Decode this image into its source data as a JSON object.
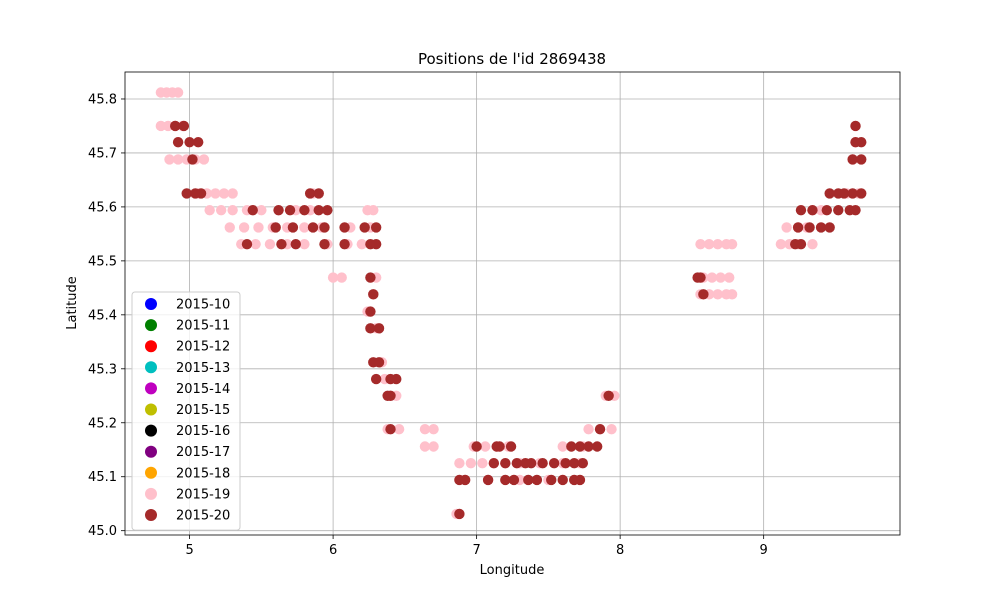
{
  "chart_data": {
    "type": "scatter",
    "title": "Positions de l'id 2869438",
    "xlabel": "Longitude",
    "ylabel": "Latitude",
    "xlim": [
      4.55,
      9.95
    ],
    "ylim": [
      44.992,
      45.85
    ],
    "xticks": [
      5,
      6,
      7,
      8,
      9
    ],
    "yticks": [
      45.0,
      45.1,
      45.2,
      45.3,
      45.4,
      45.5,
      45.6,
      45.7,
      45.8
    ],
    "ytick_labels": [
      "45.0",
      "45.1",
      "45.2",
      "45.3",
      "45.4",
      "45.5",
      "45.6",
      "45.7",
      "45.8"
    ],
    "grid": true,
    "legend_position": "lower-left",
    "series": [
      {
        "name": "2015-10",
        "color": "#0000ff",
        "points": []
      },
      {
        "name": "2015-11",
        "color": "#008000",
        "points": []
      },
      {
        "name": "2015-12",
        "color": "#ff0000",
        "points": []
      },
      {
        "name": "2015-13",
        "color": "#00bfbf",
        "points": []
      },
      {
        "name": "2015-14",
        "color": "#bf00bf",
        "points": []
      },
      {
        "name": "2015-15",
        "color": "#bfbf00",
        "points": []
      },
      {
        "name": "2015-16",
        "color": "#000000",
        "points": []
      },
      {
        "name": "2015-17",
        "color": "#800080",
        "points": []
      },
      {
        "name": "2015-18",
        "color": "#ffa500",
        "points": []
      },
      {
        "name": "2015-19",
        "color": "#ffc0cb",
        "points": [
          [
            4.8,
            45.812
          ],
          [
            4.84,
            45.812
          ],
          [
            4.88,
            45.812
          ],
          [
            4.92,
            45.812
          ],
          [
            4.8,
            45.75
          ],
          [
            4.85,
            45.75
          ],
          [
            4.9,
            45.75
          ],
          [
            4.95,
            45.75
          ],
          [
            4.86,
            45.688
          ],
          [
            4.92,
            45.688
          ],
          [
            4.98,
            45.688
          ],
          [
            5.04,
            45.688
          ],
          [
            5.1,
            45.688
          ],
          [
            4.92,
            45.72
          ],
          [
            5.06,
            45.625
          ],
          [
            5.12,
            45.625
          ],
          [
            5.18,
            45.625
          ],
          [
            5.24,
            45.625
          ],
          [
            5.3,
            45.625
          ],
          [
            5.86,
            45.625
          ],
          [
            5.14,
            45.594
          ],
          [
            5.22,
            45.594
          ],
          [
            5.3,
            45.594
          ],
          [
            5.4,
            45.594
          ],
          [
            5.5,
            45.594
          ],
          [
            5.62,
            45.594
          ],
          [
            5.74,
            45.594
          ],
          [
            5.84,
            45.594
          ],
          [
            6.24,
            45.594
          ],
          [
            6.28,
            45.594
          ],
          [
            5.28,
            45.562
          ],
          [
            5.38,
            45.562
          ],
          [
            5.48,
            45.562
          ],
          [
            5.58,
            45.562
          ],
          [
            5.68,
            45.562
          ],
          [
            5.8,
            45.562
          ],
          [
            5.92,
            45.562
          ],
          [
            6.12,
            45.562
          ],
          [
            6.26,
            45.562
          ],
          [
            5.36,
            45.531
          ],
          [
            5.46,
            45.531
          ],
          [
            5.56,
            45.531
          ],
          [
            5.68,
            45.531
          ],
          [
            5.8,
            45.531
          ],
          [
            5.96,
            45.531
          ],
          [
            6.1,
            45.531
          ],
          [
            6.2,
            45.531
          ],
          [
            6.0,
            45.469
          ],
          [
            6.06,
            45.469
          ],
          [
            6.3,
            45.469
          ],
          [
            6.28,
            45.438
          ],
          [
            6.24,
            45.406
          ],
          [
            6.3,
            45.375
          ],
          [
            6.34,
            45.312
          ],
          [
            6.36,
            45.281
          ],
          [
            6.4,
            45.25
          ],
          [
            6.44,
            45.25
          ],
          [
            6.38,
            45.188
          ],
          [
            6.46,
            45.188
          ],
          [
            6.64,
            45.188
          ],
          [
            6.7,
            45.188
          ],
          [
            6.64,
            45.156
          ],
          [
            6.7,
            45.156
          ],
          [
            6.86,
            45.031
          ],
          [
            6.92,
            45.094
          ],
          [
            6.88,
            45.125
          ],
          [
            6.96,
            45.125
          ],
          [
            7.04,
            45.125
          ],
          [
            7.12,
            45.125
          ],
          [
            7.2,
            45.125
          ],
          [
            7.3,
            45.125
          ],
          [
            7.44,
            45.125
          ],
          [
            7.6,
            45.125
          ],
          [
            7.72,
            45.125
          ],
          [
            6.98,
            45.156
          ],
          [
            7.06,
            45.156
          ],
          [
            7.14,
            45.156
          ],
          [
            7.22,
            45.156
          ],
          [
            7.08,
            45.094
          ],
          [
            7.3,
            45.094
          ],
          [
            7.5,
            45.094
          ],
          [
            7.6,
            45.156
          ],
          [
            7.74,
            45.156
          ],
          [
            7.78,
            45.188
          ],
          [
            7.86,
            45.188
          ],
          [
            7.94,
            45.188
          ],
          [
            7.9,
            45.25
          ],
          [
            7.96,
            45.25
          ],
          [
            8.56,
            45.531
          ],
          [
            8.62,
            45.531
          ],
          [
            8.68,
            45.531
          ],
          [
            8.74,
            45.531
          ],
          [
            8.78,
            45.531
          ],
          [
            8.58,
            45.469
          ],
          [
            8.64,
            45.469
          ],
          [
            8.7,
            45.469
          ],
          [
            8.76,
            45.469
          ],
          [
            8.56,
            45.438
          ],
          [
            8.62,
            45.438
          ],
          [
            8.68,
            45.438
          ],
          [
            8.74,
            45.438
          ],
          [
            8.78,
            45.438
          ],
          [
            9.12,
            45.531
          ],
          [
            9.18,
            45.531
          ],
          [
            9.24,
            45.531
          ],
          [
            9.34,
            45.531
          ],
          [
            9.16,
            45.562
          ],
          [
            9.24,
            45.562
          ],
          [
            9.3,
            45.562
          ],
          [
            9.4,
            45.594
          ],
          [
            9.34,
            45.594
          ],
          [
            9.58,
            45.625
          ],
          [
            9.66,
            45.625
          ],
          [
            9.62,
            45.688
          ],
          [
            9.64,
            45.72
          ]
        ]
      },
      {
        "name": "2015-20",
        "color": "#a52a2a",
        "points": [
          [
            4.9,
            45.75
          ],
          [
            4.96,
            45.75
          ],
          [
            4.92,
            45.72
          ],
          [
            5.0,
            45.72
          ],
          [
            5.06,
            45.72
          ],
          [
            5.02,
            45.688
          ],
          [
            4.98,
            45.625
          ],
          [
            5.04,
            45.625
          ],
          [
            5.08,
            45.625
          ],
          [
            5.84,
            45.625
          ],
          [
            5.9,
            45.625
          ],
          [
            5.44,
            45.594
          ],
          [
            5.62,
            45.594
          ],
          [
            5.7,
            45.594
          ],
          [
            5.8,
            45.594
          ],
          [
            5.9,
            45.594
          ],
          [
            5.96,
            45.594
          ],
          [
            5.6,
            45.562
          ],
          [
            5.72,
            45.562
          ],
          [
            5.86,
            45.562
          ],
          [
            5.94,
            45.562
          ],
          [
            6.08,
            45.562
          ],
          [
            6.22,
            45.562
          ],
          [
            6.3,
            45.562
          ],
          [
            5.4,
            45.531
          ],
          [
            5.64,
            45.531
          ],
          [
            5.74,
            45.531
          ],
          [
            5.94,
            45.531
          ],
          [
            6.08,
            45.531
          ],
          [
            6.26,
            45.531
          ],
          [
            6.3,
            45.531
          ],
          [
            6.26,
            45.469
          ],
          [
            6.28,
            45.438
          ],
          [
            6.26,
            45.406
          ],
          [
            6.26,
            45.375
          ],
          [
            6.32,
            45.375
          ],
          [
            6.28,
            45.312
          ],
          [
            6.32,
            45.312
          ],
          [
            6.3,
            45.281
          ],
          [
            6.4,
            45.281
          ],
          [
            6.44,
            45.281
          ],
          [
            6.38,
            45.25
          ],
          [
            6.4,
            45.25
          ],
          [
            6.4,
            45.188
          ],
          [
            6.92,
            45.094
          ],
          [
            6.88,
            45.094
          ],
          [
            6.88,
            45.031
          ],
          [
            7.0,
            45.156
          ],
          [
            7.14,
            45.156
          ],
          [
            7.16,
            45.156
          ],
          [
            7.24,
            45.156
          ],
          [
            7.12,
            45.125
          ],
          [
            7.2,
            45.125
          ],
          [
            7.28,
            45.125
          ],
          [
            7.34,
            45.125
          ],
          [
            7.38,
            45.125
          ],
          [
            7.46,
            45.125
          ],
          [
            7.54,
            45.125
          ],
          [
            7.62,
            45.125
          ],
          [
            7.68,
            45.125
          ],
          [
            7.74,
            45.125
          ],
          [
            7.08,
            45.094
          ],
          [
            7.2,
            45.094
          ],
          [
            7.26,
            45.094
          ],
          [
            7.36,
            45.094
          ],
          [
            7.42,
            45.094
          ],
          [
            7.52,
            45.094
          ],
          [
            7.6,
            45.094
          ],
          [
            7.68,
            45.094
          ],
          [
            7.72,
            45.094
          ],
          [
            7.66,
            45.156
          ],
          [
            7.72,
            45.156
          ],
          [
            7.78,
            45.156
          ],
          [
            7.84,
            45.156
          ],
          [
            7.86,
            45.188
          ],
          [
            7.92,
            45.25
          ],
          [
            8.54,
            45.469
          ],
          [
            8.56,
            45.469
          ],
          [
            8.58,
            45.438
          ],
          [
            9.22,
            45.531
          ],
          [
            9.26,
            45.531
          ],
          [
            9.24,
            45.562
          ],
          [
            9.32,
            45.562
          ],
          [
            9.4,
            45.562
          ],
          [
            9.46,
            45.562
          ],
          [
            9.26,
            45.594
          ],
          [
            9.34,
            45.594
          ],
          [
            9.44,
            45.594
          ],
          [
            9.52,
            45.594
          ],
          [
            9.6,
            45.594
          ],
          [
            9.64,
            45.594
          ],
          [
            9.46,
            45.625
          ],
          [
            9.52,
            45.625
          ],
          [
            9.56,
            45.625
          ],
          [
            9.62,
            45.625
          ],
          [
            9.68,
            45.625
          ],
          [
            9.62,
            45.688
          ],
          [
            9.68,
            45.688
          ],
          [
            9.68,
            45.72
          ],
          [
            9.64,
            45.72
          ],
          [
            9.64,
            45.75
          ]
        ]
      }
    ]
  }
}
